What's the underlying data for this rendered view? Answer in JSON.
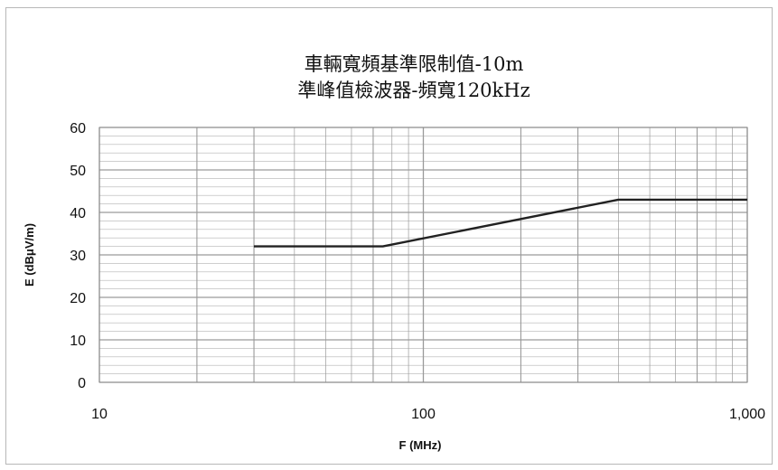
{
  "chart_data": {
    "type": "line",
    "title": [
      "車輛寬頻基準限制值-10m",
      "準峰值檢波器-頻寬120kHz"
    ],
    "xlabel": "F (MHz)",
    "ylabel": "E (dBμV/m)",
    "x_scale": "log",
    "xlim": [
      10,
      1000
    ],
    "ylim": [
      0,
      60
    ],
    "x_ticks": [
      10,
      100,
      1000
    ],
    "x_tick_labels": [
      "10",
      "100",
      "1,000"
    ],
    "y_ticks": [
      0,
      10,
      20,
      30,
      40,
      50,
      60
    ],
    "y_tick_labels": [
      "0",
      "10",
      "20",
      "30",
      "40",
      "50",
      "60"
    ],
    "grid": true,
    "legend": "none",
    "series": [
      {
        "x": [
          30,
          75,
          400,
          1000
        ],
        "y": [
          32,
          32,
          43,
          43
        ]
      }
    ],
    "colors": {
      "line": "#222222",
      "grid": "#9a9a9a",
      "frame": "#b8b8b8"
    }
  }
}
